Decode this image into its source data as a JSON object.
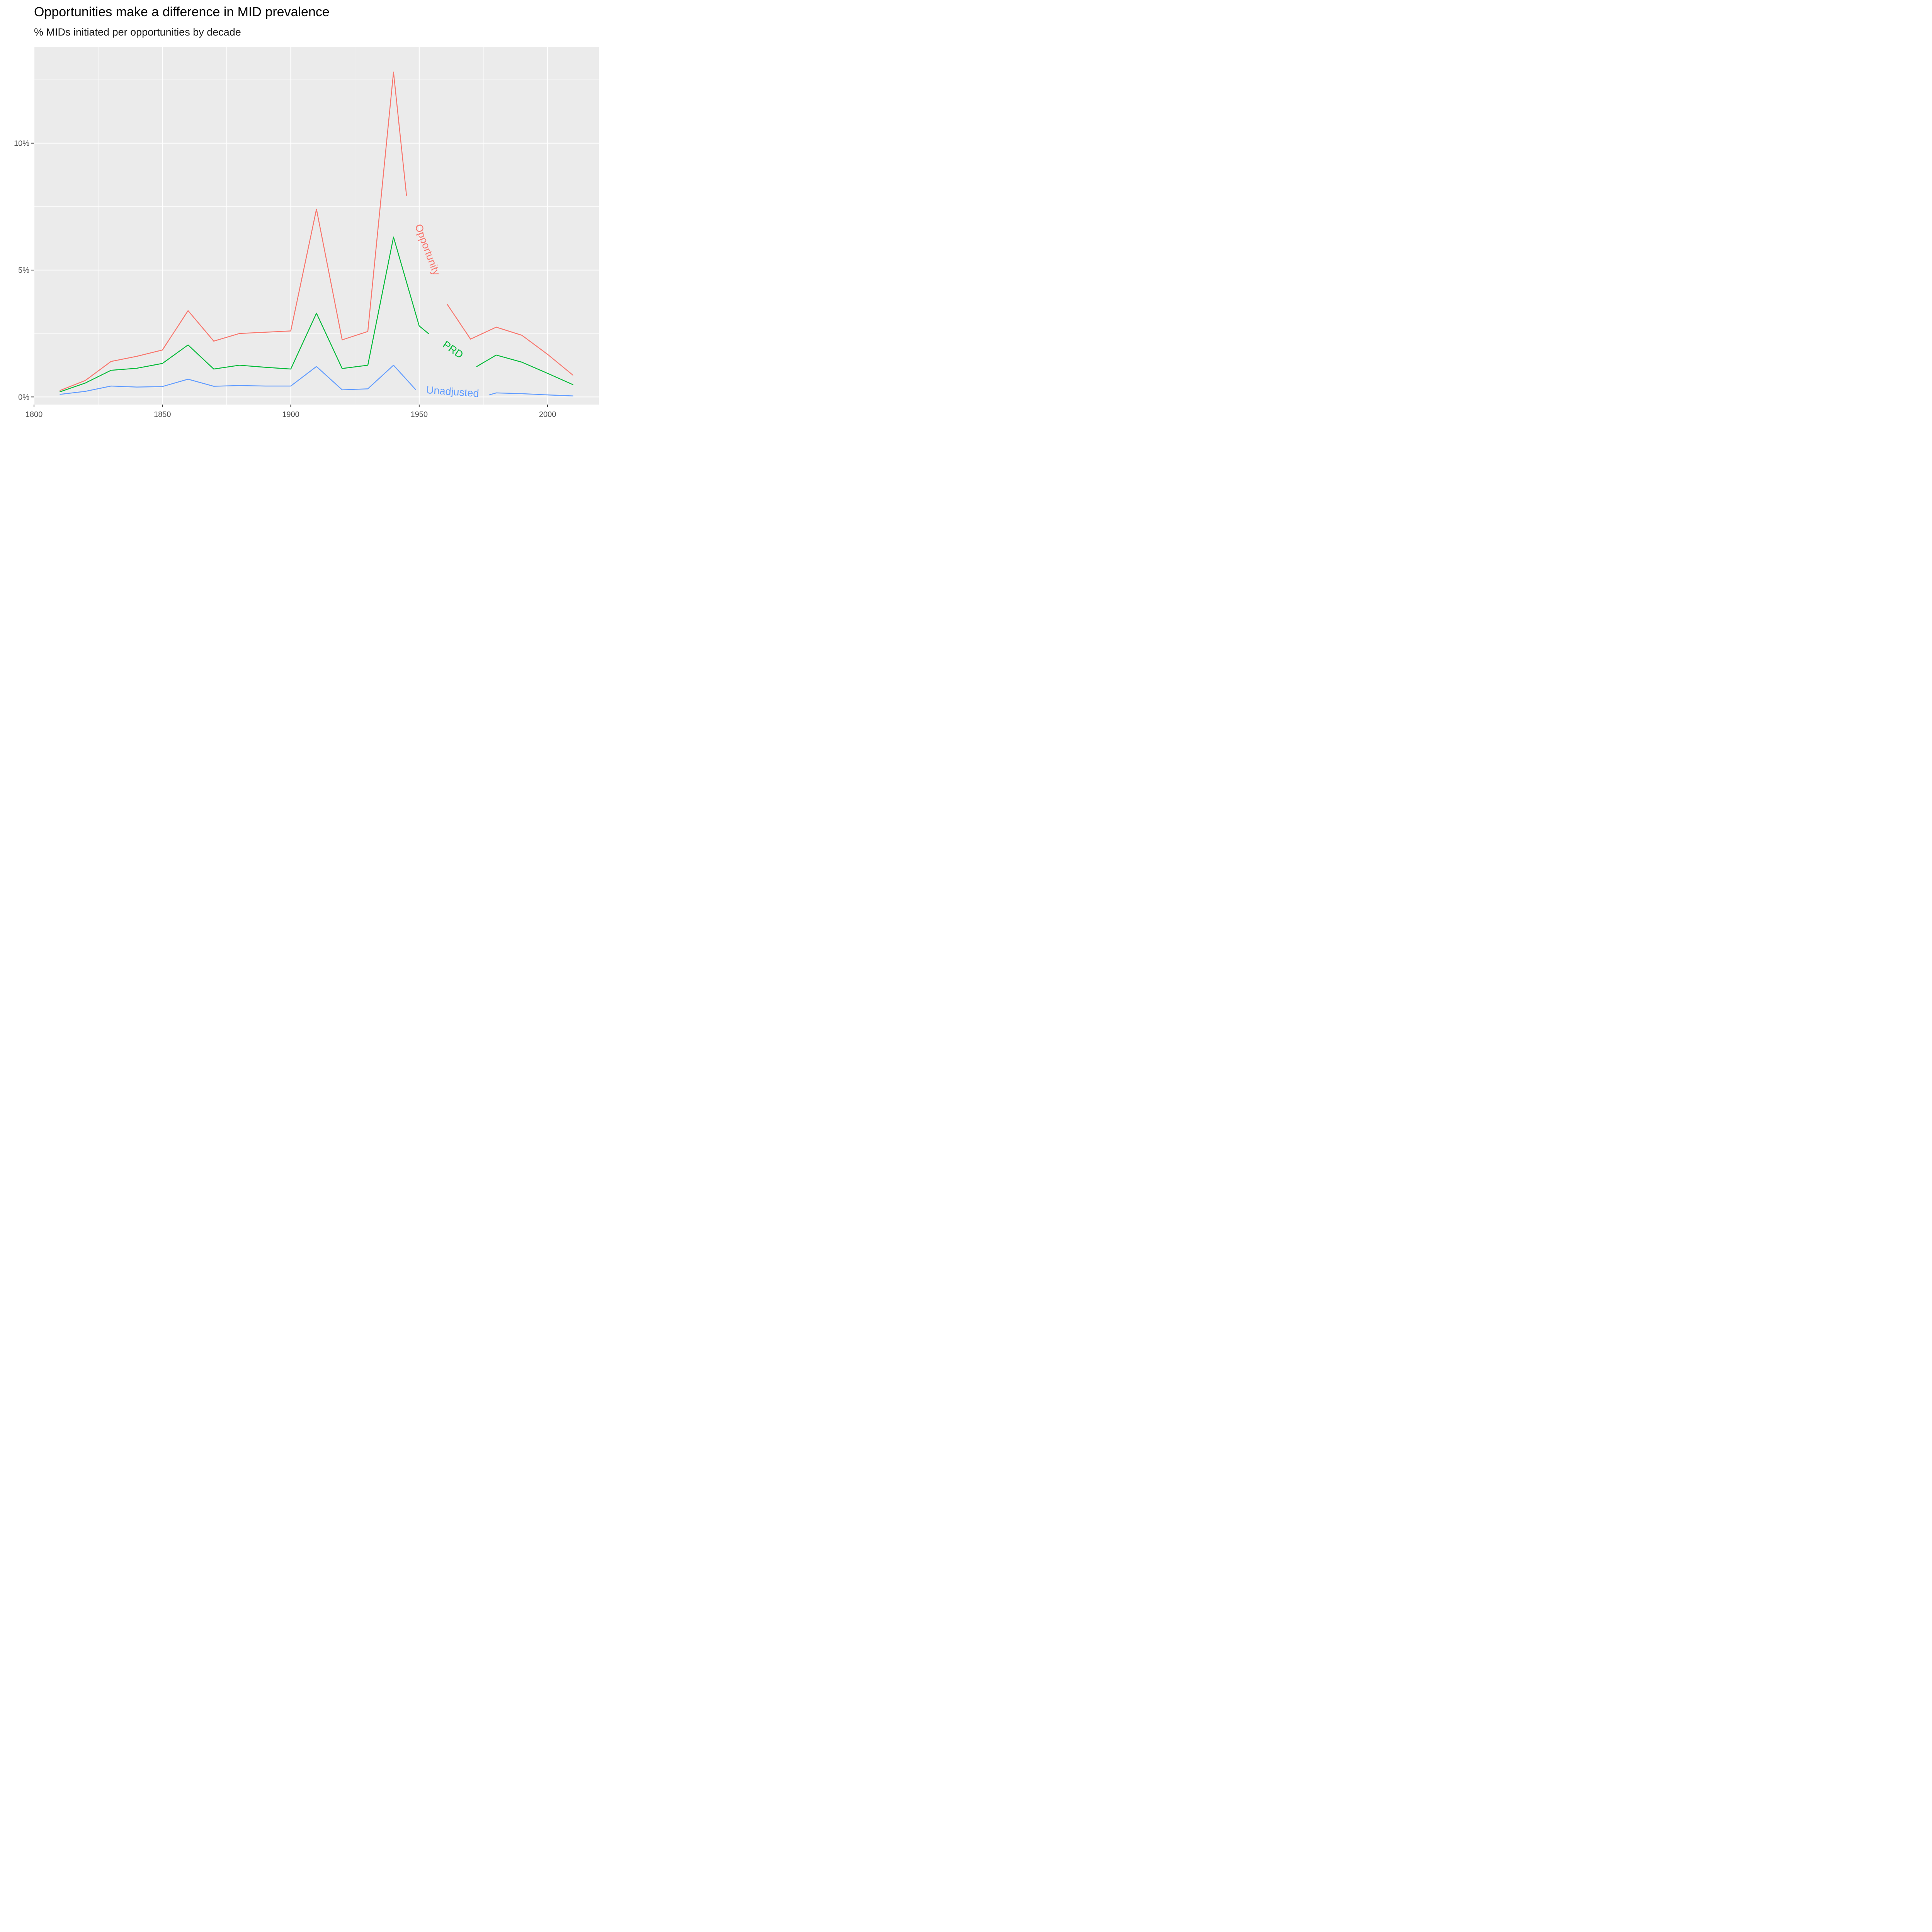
{
  "chart_data": {
    "type": "line",
    "title": "Opportunities make a difference in MID prevalence",
    "subtitle": "% MIDs initiated per opportunities by decade",
    "xlabel": "",
    "ylabel": "",
    "xlim": [
      1800,
      2020
    ],
    "ylim": [
      -0.3,
      13.8
    ],
    "x_ticks": [
      1800,
      1850,
      1900,
      1950,
      2000
    ],
    "y_ticks": [
      0,
      5,
      10
    ],
    "y_tick_labels": [
      "0%",
      "5%",
      "10%"
    ],
    "grid": true,
    "legend": "none (direct labels on lines)",
    "x": [
      1810,
      1820,
      1830,
      1840,
      1850,
      1860,
      1870,
      1880,
      1890,
      1900,
      1910,
      1920,
      1930,
      1940,
      1950,
      1960,
      1970,
      1980,
      1990,
      2000,
      2010
    ],
    "series": [
      {
        "name": "Opportunity",
        "color": "#F8766D",
        "values": [
          0.25,
          0.65,
          1.4,
          1.6,
          1.85,
          3.4,
          2.2,
          2.5,
          2.55,
          2.6,
          7.4,
          2.25,
          2.58,
          12.8,
          6.6,
          3.9,
          2.28,
          2.75,
          2.43,
          1.68,
          0.85
        ],
        "label_at": 1953
      },
      {
        "name": "PRD",
        "color": "#00BA38",
        "values": [
          0.2,
          0.55,
          1.05,
          1.13,
          1.32,
          2.05,
          1.1,
          1.25,
          1.17,
          1.1,
          3.3,
          1.12,
          1.25,
          6.3,
          2.8,
          2.05,
          1.35,
          1.65,
          1.37,
          0.93,
          0.48
        ],
        "label_at": 1963
      },
      {
        "name": "Unadjusted",
        "color": "#619CFF",
        "values": [
          0.1,
          0.22,
          0.43,
          0.39,
          0.41,
          0.7,
          0.42,
          0.45,
          0.43,
          0.43,
          1.2,
          0.28,
          0.32,
          1.25,
          0.45,
          0.2,
          0.13,
          0.16,
          0.13,
          0.08,
          0.04
        ],
        "label_at": 1963
      }
    ]
  }
}
